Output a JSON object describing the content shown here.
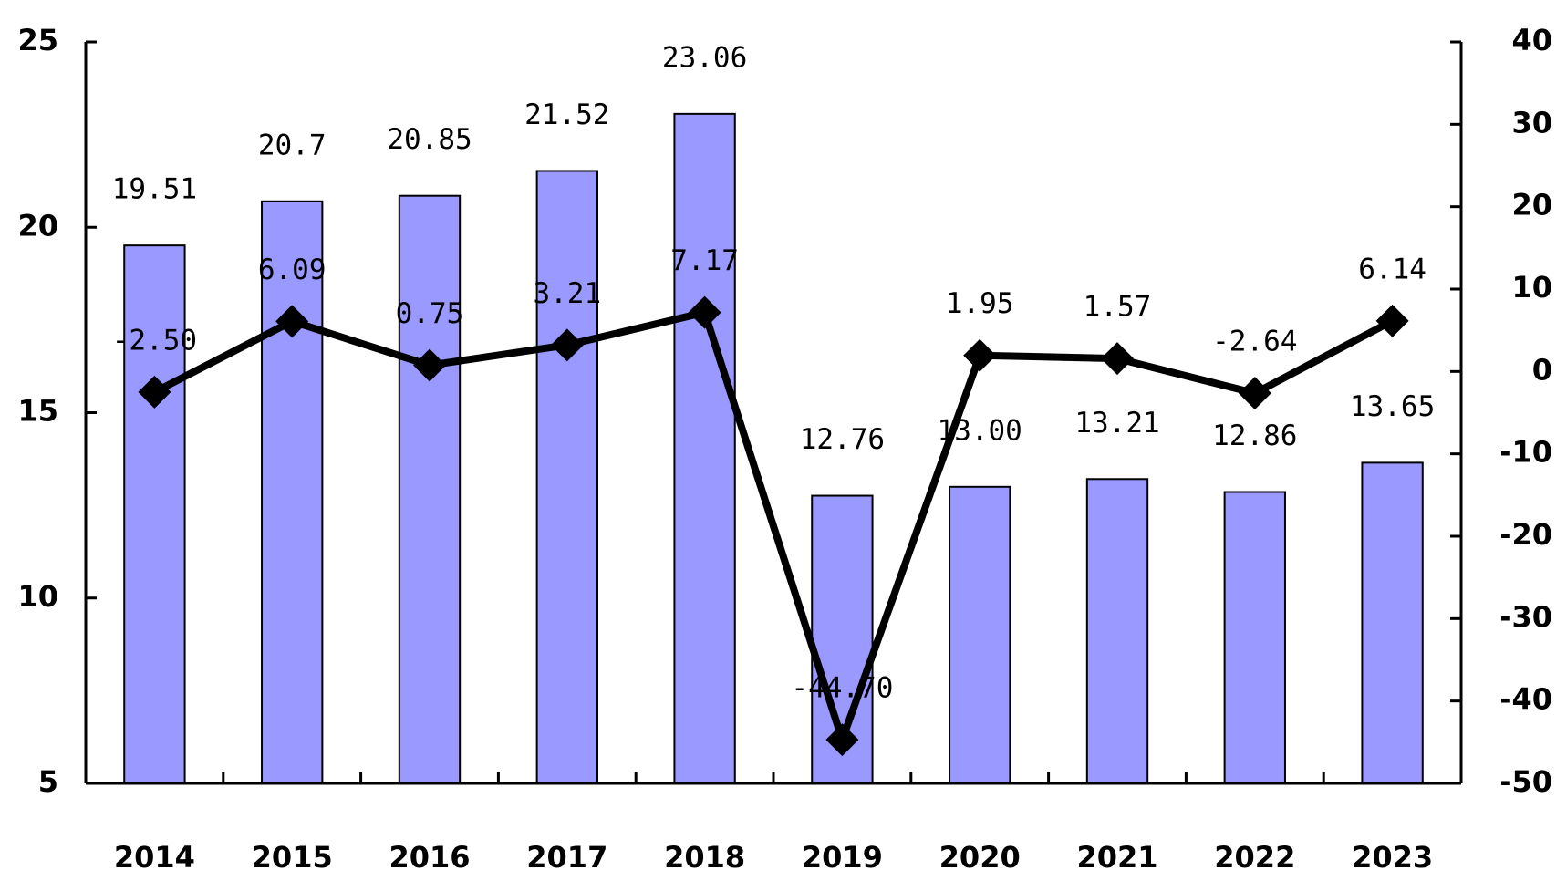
{
  "chart_data": {
    "type": "combo",
    "categories": [
      "2014",
      "2015",
      "2016",
      "2017",
      "2018",
      "2019",
      "2020",
      "2021",
      "2022",
      "2023"
    ],
    "series": [
      {
        "type": "bar",
        "axis": "y",
        "color": "#9999ff",
        "values": [
          19.51,
          20.7,
          20.85,
          21.52,
          23.06,
          12.76,
          13.0,
          13.21,
          12.86,
          13.65
        ],
        "value_labels": [
          "19.51",
          "20.7",
          "20.85",
          "21.52",
          "23.06",
          "12.76",
          "13.00",
          "13.21",
          "12.86",
          "13.65"
        ]
      },
      {
        "type": "line",
        "axis": "y2",
        "color": "#000000",
        "values": [
          -2.5,
          6.09,
          0.75,
          3.21,
          7.17,
          -44.7,
          1.95,
          1.57,
          -2.64,
          6.14
        ],
        "value_labels": [
          "-2.50",
          "6.09",
          "0.75",
          "3.21",
          "7.17",
          "-44.70",
          "1.95",
          "1.57",
          "-2.64",
          "6.14"
        ]
      }
    ],
    "ylim": [
      5,
      25
    ],
    "yticks": [
      5,
      10,
      15,
      20,
      25
    ],
    "y2lim": [
      -50,
      40
    ],
    "y2ticks": [
      -50,
      -40,
      -30,
      -20,
      -10,
      0,
      10,
      20,
      30,
      40
    ]
  }
}
